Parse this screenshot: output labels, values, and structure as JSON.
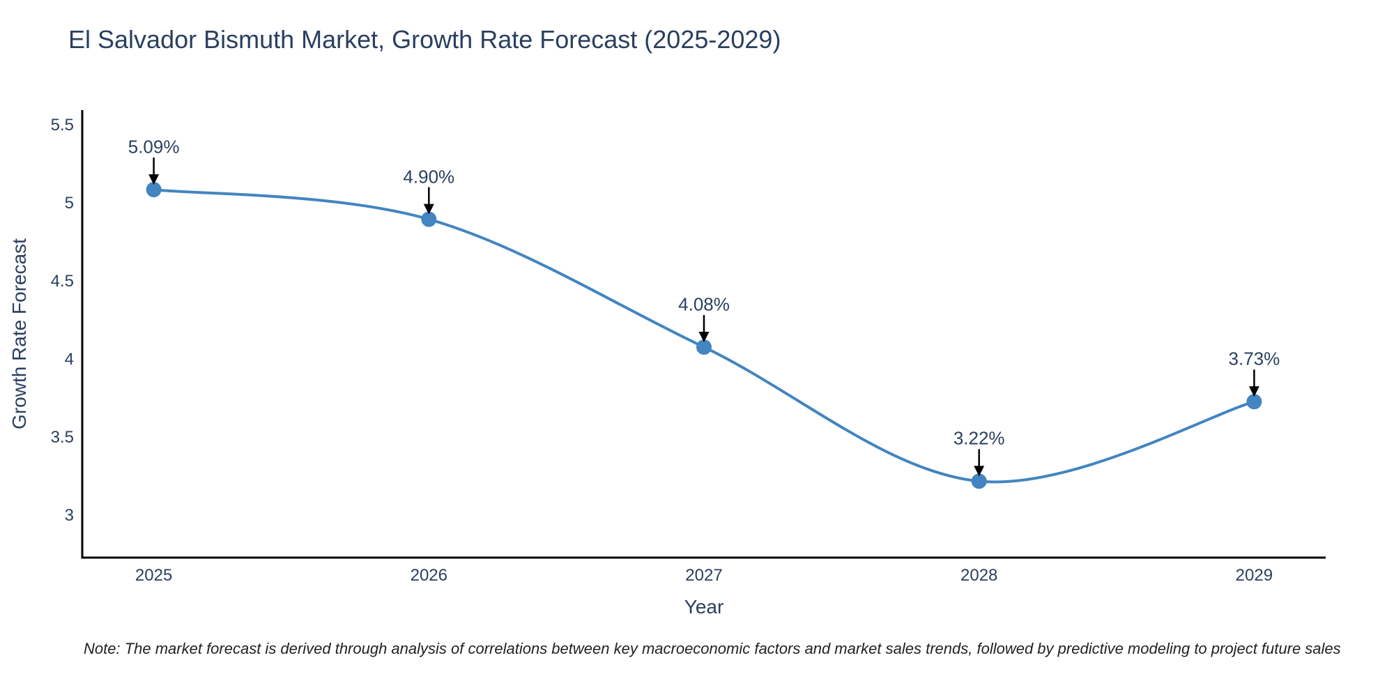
{
  "header": {
    "title": "El Salvador Bismuth Market, Growth Rate Forecast (2025-2029)"
  },
  "note": {
    "text": "Note: The market forecast is derived through analysis of correlations between key macroeconomic factors and market sales trends, followed by predictive modeling to project future sales"
  },
  "chart_data": {
    "type": "line",
    "title": "El Salvador Bismuth Market, Growth Rate Forecast (2025-2029)",
    "xlabel": "Year",
    "ylabel": "Growth Rate Forecast",
    "x": [
      2025,
      2026,
      2027,
      2028,
      2029
    ],
    "values": [
      5.09,
      4.9,
      4.08,
      3.22,
      3.73
    ],
    "point_labels": [
      "5.09%",
      "4.90%",
      "4.08%",
      "3.22%",
      "3.73%"
    ],
    "xticks": [
      "2025",
      "2026",
      "2027",
      "2028",
      "2029"
    ],
    "yticks": [
      5.5,
      5,
      4.5,
      4,
      3.5,
      3
    ],
    "xlim": [
      2024.74,
      2029.26
    ],
    "ylim": [
      2.73,
      5.6
    ],
    "line_shape": "spline",
    "grid": false,
    "legend": false,
    "line_color": "#4285c0",
    "marker_color": "#4285c0",
    "arrow_color": "#000000",
    "axis_color": "#000000",
    "text_color": "#2a3f5f"
  }
}
